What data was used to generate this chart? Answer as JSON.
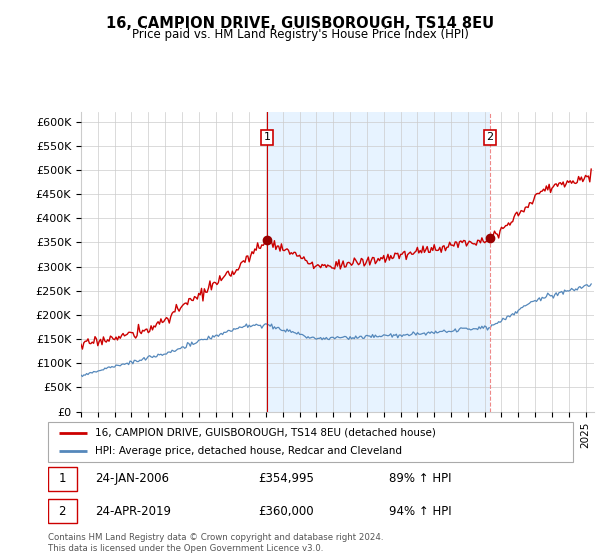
{
  "title": "16, CAMPION DRIVE, GUISBOROUGH, TS14 8EU",
  "subtitle": "Price paid vs. HM Land Registry's House Price Index (HPI)",
  "ylabel_ticks": [
    "£0",
    "£50K",
    "£100K",
    "£150K",
    "£200K",
    "£250K",
    "£300K",
    "£350K",
    "£400K",
    "£450K",
    "£500K",
    "£550K",
    "£600K"
  ],
  "ylim": [
    0,
    620000
  ],
  "ytick_values": [
    0,
    50000,
    100000,
    150000,
    200000,
    250000,
    300000,
    350000,
    400000,
    450000,
    500000,
    550000,
    600000
  ],
  "line1_color": "#cc0000",
  "line2_color": "#5588bb",
  "shade_color": "#ddeeff",
  "annotation1_date": "24-JAN-2006",
  "annotation1_price": "£354,995",
  "annotation1_hpi": "89% ↑ HPI",
  "annotation2_date": "24-APR-2019",
  "annotation2_price": "£360,000",
  "annotation2_hpi": "94% ↑ HPI",
  "legend_label1": "16, CAMPION DRIVE, GUISBOROUGH, TS14 8EU (detached house)",
  "legend_label2": "HPI: Average price, detached house, Redcar and Cleveland",
  "footer": "Contains HM Land Registry data © Crown copyright and database right 2024.\nThis data is licensed under the Open Government Licence v3.0.",
  "vline1_x": 2006.07,
  "vline2_x": 2019.32,
  "sale1_x": 2006.07,
  "sale1_y": 354995,
  "sale2_x": 2019.32,
  "sale2_y": 360000,
  "xmin": 1995.0,
  "xmax": 2025.5
}
